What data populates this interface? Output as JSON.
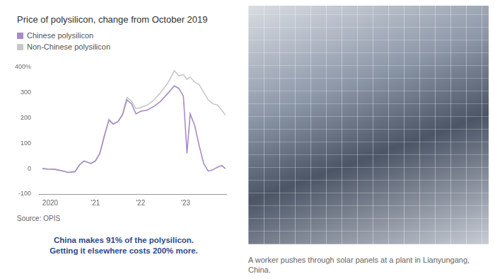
{
  "chart_data": {
    "type": "line",
    "title": "Price of polysilicon, change from October 2019",
    "x": [
      2019.83,
      2019.95,
      2020.1,
      2020.25,
      2020.4,
      2020.55,
      2020.65,
      2020.75,
      2020.9,
      2021.0,
      2021.1,
      2021.2,
      2021.3,
      2021.4,
      2021.5,
      2021.6,
      2021.7,
      2021.8,
      2021.9,
      2022.0,
      2022.15,
      2022.3,
      2022.45,
      2022.6,
      2022.75,
      2022.85,
      2022.95,
      2023.03,
      2023.1,
      2023.2,
      2023.3,
      2023.4,
      2023.5,
      2023.6,
      2023.7,
      2023.8,
      2023.88
    ],
    "series": [
      {
        "name": "Chinese polysilicon",
        "color": "#a78bc9",
        "values": [
          0,
          -2,
          -3,
          -8,
          -15,
          -12,
          15,
          30,
          20,
          30,
          60,
          130,
          190,
          175,
          185,
          210,
          270,
          255,
          215,
          225,
          230,
          245,
          265,
          295,
          325,
          315,
          285,
          60,
          215,
          170,
          90,
          20,
          -10,
          -5,
          5,
          12,
          0
        ]
      },
      {
        "name": "Non-Chinese polysilicon",
        "color": "#c8c8c8",
        "values": [
          0,
          -2,
          -3,
          -8,
          -15,
          -12,
          15,
          30,
          20,
          30,
          60,
          125,
          195,
          175,
          185,
          215,
          280,
          265,
          235,
          240,
          250,
          270,
          300,
          335,
          385,
          365,
          370,
          350,
          360,
          340,
          330,
          300,
          270,
          255,
          250,
          230,
          210
        ]
      }
    ],
    "xlim": [
      2019.75,
      2023.9
    ],
    "xticks": [
      2020,
      {
        "value": 2021,
        "label": "'21"
      },
      {
        "value": 2022,
        "label": "'22"
      },
      {
        "value": 2023,
        "label": "'23"
      }
    ],
    "ylim": [
      -100,
      400
    ],
    "yticks": [
      -100,
      0,
      100,
      200,
      300,
      {
        "value": 400,
        "label": "400%"
      }
    ],
    "grid": false,
    "legend": "top-left",
    "source": "Source: OPIS",
    "annotation": [
      "China makes 91% of the polysilicon.",
      "Getting it elsewhere costs 200% more."
    ]
  },
  "photo_caption": "A worker pushes through solar panels at a plant in Lianyungang, China."
}
